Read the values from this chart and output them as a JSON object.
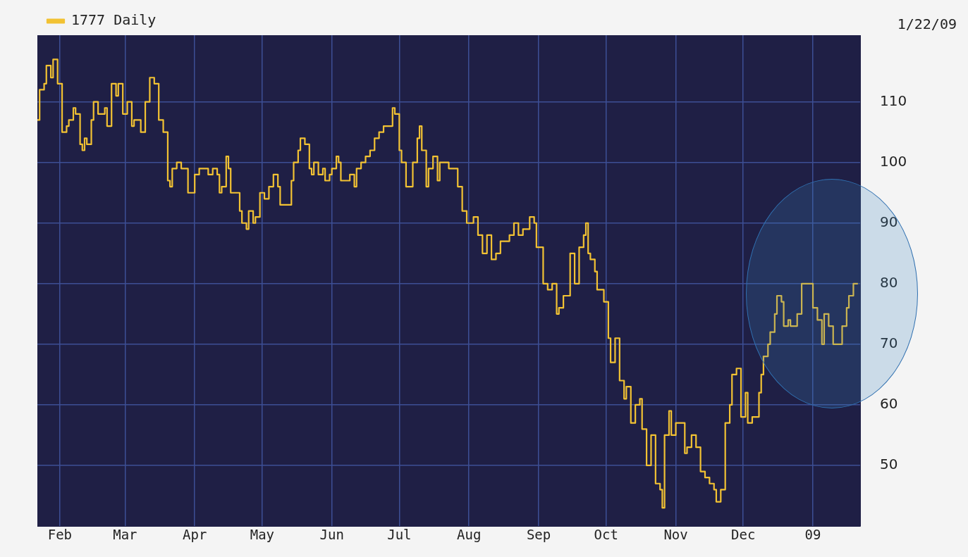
{
  "chart_data": {
    "type": "step",
    "legend": "top left",
    "grid": true,
    "marker": "none",
    "annotations": [
      "1/22/09"
    ],
    "xlim": [
      "2008-01-22",
      "2009-01-22"
    ],
    "xticks": [
      {
        "value": "2008-02-01",
        "label": "Feb"
      },
      {
        "value": "2008-03-01",
        "label": "Mar"
      },
      {
        "value": "2008-04-01",
        "label": "Apr"
      },
      {
        "value": "2008-05-01",
        "label": "May"
      },
      {
        "value": "2008-06-01",
        "label": "Jun"
      },
      {
        "value": "2008-07-01",
        "label": "Jul"
      },
      {
        "value": "2008-08-01",
        "label": "Aug"
      },
      {
        "value": "2008-09-01",
        "label": "Sep"
      },
      {
        "value": "2008-10-01",
        "label": "Oct"
      },
      {
        "value": "2008-11-01",
        "label": "Nov"
      },
      {
        "value": "2008-12-01",
        "label": "Dec"
      },
      {
        "value": "2009-01-01",
        "label": "09"
      }
    ],
    "ylim": [
      40,
      121
    ],
    "yticks": [
      50,
      60,
      70,
      80,
      90,
      100,
      110
    ],
    "x": [
      "2008-01-22",
      "2008-01-23",
      "2008-01-25",
      "2008-01-26",
      "2008-01-28",
      "2008-01-29",
      "2008-01-30",
      "2008-01-31",
      "2008-02-02",
      "2008-02-04",
      "2008-02-05",
      "2008-02-07",
      "2008-02-08",
      "2008-02-10",
      "2008-02-11",
      "2008-02-12",
      "2008-02-13",
      "2008-02-15",
      "2008-02-16",
      "2008-02-18",
      "2008-02-19",
      "2008-02-21",
      "2008-02-22",
      "2008-02-24",
      "2008-02-26",
      "2008-02-27",
      "2008-02-29",
      "2008-03-02",
      "2008-03-04",
      "2008-03-05",
      "2008-03-08",
      "2008-03-10",
      "2008-03-12",
      "2008-03-14",
      "2008-03-16",
      "2008-03-18",
      "2008-03-20",
      "2008-03-21",
      "2008-03-22",
      "2008-03-24",
      "2008-03-26",
      "2008-03-27",
      "2008-03-29",
      "2008-03-31",
      "2008-04-01",
      "2008-04-03",
      "2008-04-05",
      "2008-04-07",
      "2008-04-09",
      "2008-04-11",
      "2008-04-12",
      "2008-04-13",
      "2008-04-15",
      "2008-04-16",
      "2008-04-17",
      "2008-04-19",
      "2008-04-21",
      "2008-04-22",
      "2008-04-24",
      "2008-04-25",
      "2008-04-27",
      "2008-04-28",
      "2008-04-30",
      "2008-05-02",
      "2008-05-04",
      "2008-05-06",
      "2008-05-08",
      "2008-05-09",
      "2008-05-12",
      "2008-05-14",
      "2008-05-15",
      "2008-05-17",
      "2008-05-18",
      "2008-05-20",
      "2008-05-22",
      "2008-05-23",
      "2008-05-24",
      "2008-05-26",
      "2008-05-28",
      "2008-05-29",
      "2008-05-31",
      "2008-06-01",
      "2008-06-03",
      "2008-06-04",
      "2008-06-05",
      "2008-06-07",
      "2008-06-09",
      "2008-06-11",
      "2008-06-12",
      "2008-06-14",
      "2008-06-16",
      "2008-06-18",
      "2008-06-20",
      "2008-06-22",
      "2008-06-24",
      "2008-06-26",
      "2008-06-28",
      "2008-06-29",
      "2008-07-01",
      "2008-07-02",
      "2008-07-04",
      "2008-07-05",
      "2008-07-07",
      "2008-07-09",
      "2008-07-10",
      "2008-07-11",
      "2008-07-13",
      "2008-07-14",
      "2008-07-16",
      "2008-07-18",
      "2008-07-19",
      "2008-07-21",
      "2008-07-23",
      "2008-07-25",
      "2008-07-27",
      "2008-07-29",
      "2008-07-31",
      "2008-08-03",
      "2008-08-05",
      "2008-08-07",
      "2008-08-09",
      "2008-08-11",
      "2008-08-13",
      "2008-08-15",
      "2008-08-17",
      "2008-08-19",
      "2008-08-21",
      "2008-08-23",
      "2008-08-25",
      "2008-08-28",
      "2008-08-30",
      "2008-08-31",
      "2008-09-01",
      "2008-09-03",
      "2008-09-05",
      "2008-09-07",
      "2008-09-09",
      "2008-09-10",
      "2008-09-12",
      "2008-09-14",
      "2008-09-15",
      "2008-09-17",
      "2008-09-19",
      "2008-09-21",
      "2008-09-22",
      "2008-09-23",
      "2008-09-24",
      "2008-09-26",
      "2008-09-27",
      "2008-09-30",
      "2008-10-02",
      "2008-10-03",
      "2008-10-05",
      "2008-10-07",
      "2008-10-09",
      "2008-10-10",
      "2008-10-12",
      "2008-10-14",
      "2008-10-16",
      "2008-10-17",
      "2008-10-19",
      "2008-10-21",
      "2008-10-23",
      "2008-10-25",
      "2008-10-26",
      "2008-10-27",
      "2008-10-29",
      "2008-10-30",
      "2008-11-01",
      "2008-11-03",
      "2008-11-05",
      "2008-11-06",
      "2008-11-08",
      "2008-11-10",
      "2008-11-12",
      "2008-11-14",
      "2008-11-16",
      "2008-11-18",
      "2008-11-19",
      "2008-11-21",
      "2008-11-23",
      "2008-11-25",
      "2008-11-26",
      "2008-11-28",
      "2008-11-30",
      "2008-12-02",
      "2008-12-03",
      "2008-12-05",
      "2008-12-07",
      "2008-12-08",
      "2008-12-09",
      "2008-12-10",
      "2008-12-12",
      "2008-12-13",
      "2008-12-15",
      "2008-12-16",
      "2008-12-18",
      "2008-12-19",
      "2008-12-21",
      "2008-12-22",
      "2008-12-24",
      "2008-12-25",
      "2008-12-27",
      "2008-12-28",
      "2008-12-31",
      "2009-01-01",
      "2009-01-03",
      "2009-01-05",
      "2009-01-06",
      "2009-01-08",
      "2009-01-10",
      "2009-01-12",
      "2009-01-14",
      "2009-01-16",
      "2009-01-17",
      "2009-01-19",
      "2009-01-21"
    ],
    "series": [
      {
        "name": "1777 Daily",
        "color": "#f2c233",
        "values": [
          107,
          112,
          113,
          116,
          114,
          117,
          117,
          113,
          105,
          106,
          107,
          109,
          108,
          103,
          102,
          104,
          103,
          107,
          110,
          108,
          108,
          109,
          106,
          113,
          111,
          113,
          108,
          110,
          106,
          107,
          105,
          110,
          114,
          113,
          107,
          105,
          97,
          96,
          99,
          100,
          99,
          99,
          95,
          95,
          98,
          99,
          99,
          98,
          99,
          98,
          95,
          96,
          101,
          99,
          95,
          95,
          92,
          90,
          89,
          92,
          90,
          91,
          95,
          94,
          96,
          98,
          96,
          93,
          93,
          97,
          100,
          102,
          104,
          103,
          99,
          98,
          100,
          98,
          99,
          97,
          98,
          99,
          101,
          100,
          97,
          97,
          98,
          96,
          99,
          100,
          101,
          102,
          104,
          105,
          106,
          106,
          109,
          108,
          102,
          100,
          96,
          96,
          100,
          104,
          106,
          102,
          96,
          99,
          101,
          97,
          100,
          100,
          99,
          99,
          96,
          92,
          90,
          91,
          88,
          85,
          88,
          84,
          85,
          87,
          87,
          88,
          90,
          88,
          89,
          91,
          90,
          86,
          86,
          80,
          79,
          80,
          75,
          76,
          78,
          78,
          85,
          80,
          86,
          88,
          90,
          85,
          84,
          82,
          79,
          77,
          71,
          67,
          71,
          64,
          61,
          63,
          57,
          60,
          61,
          56,
          50,
          55,
          47,
          46,
          43,
          55,
          59,
          55,
          57,
          57,
          52,
          53,
          55,
          53,
          49,
          48,
          47,
          46,
          44,
          46,
          57,
          60,
          65,
          66,
          58,
          62,
          57,
          58,
          58,
          62,
          65,
          68,
          70,
          72,
          75,
          78,
          77,
          73,
          74,
          73,
          73,
          75,
          80,
          80,
          80,
          76,
          74,
          70,
          75,
          73,
          70,
          70,
          73,
          76,
          78,
          80,
          80
        ]
      }
    ]
  }
}
